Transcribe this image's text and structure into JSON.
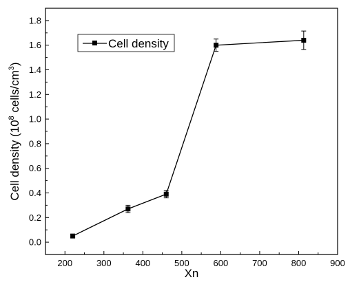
{
  "chart_data": {
    "type": "line",
    "xlabel": "Xn",
    "ylabel_parts": {
      "pre": "Cell density (10",
      "sup": "8",
      "mid": " cells/cm",
      "sup2": "3",
      "post": ")"
    },
    "xlim": [
      150,
      900
    ],
    "ylim": [
      -0.1,
      1.9
    ],
    "x_ticks": [
      200,
      300,
      400,
      500,
      600,
      700,
      800,
      900
    ],
    "x_tick_labels": [
      "200",
      "300",
      "400",
      "500",
      "600",
      "700",
      "800",
      "900"
    ],
    "y_ticks": [
      0.0,
      0.2,
      0.4,
      0.6,
      0.8,
      1.0,
      1.2,
      1.4,
      1.6,
      1.8
    ],
    "y_tick_labels": [
      "0.0",
      "0.2",
      "0.4",
      "0.6",
      "0.8",
      "1.0",
      "1.2",
      "1.4",
      "1.6",
      "1.8"
    ],
    "grid": false,
    "legend_position": "top-left",
    "series": [
      {
        "name": "Cell density",
        "marker": "square",
        "color": "#000000",
        "x": [
          220,
          362,
          460,
          588,
          813
        ],
        "y": [
          0.05,
          0.27,
          0.39,
          1.6,
          1.64
        ],
        "error": [
          0.01,
          0.03,
          0.03,
          0.05,
          0.075
        ]
      }
    ]
  }
}
